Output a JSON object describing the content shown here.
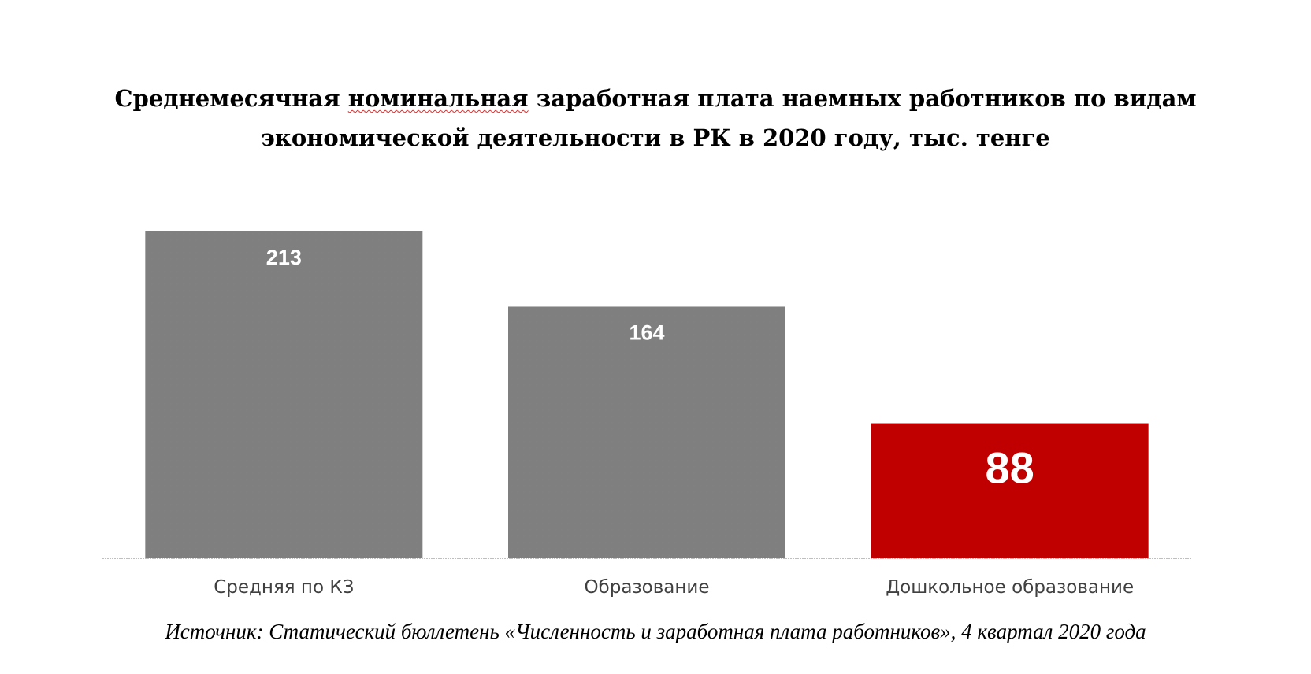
{
  "chart_data": {
    "type": "bar",
    "title_line1_before": "Среднемесячная ",
    "title_line1_marked": "номинальная",
    "title_line1_after": " заработная плата наемных работников по видам",
    "title_line2": "экономической деятельности в РК в 2020 году, тыс. тенге",
    "categories": [
      "Средняя по КЗ",
      "Образование",
      "Дошкольное образование"
    ],
    "values": [
      213,
      164,
      88
    ],
    "data_labels": [
      "213",
      "164",
      "88"
    ],
    "bar_colors": [
      "#7f7f7f",
      "#7f7f7f",
      "#c00000"
    ],
    "label_color": "#ffffff",
    "tick_color": "#404040",
    "axis_color": "#bfbfbf",
    "ylim": [
      0,
      213
    ],
    "grid": false,
    "legend": "none",
    "xlabel": "",
    "ylabel": ""
  },
  "source": "Источник: Статический бюллетень «Численность и заработная плата работников», 4 квартал 2020 года"
}
